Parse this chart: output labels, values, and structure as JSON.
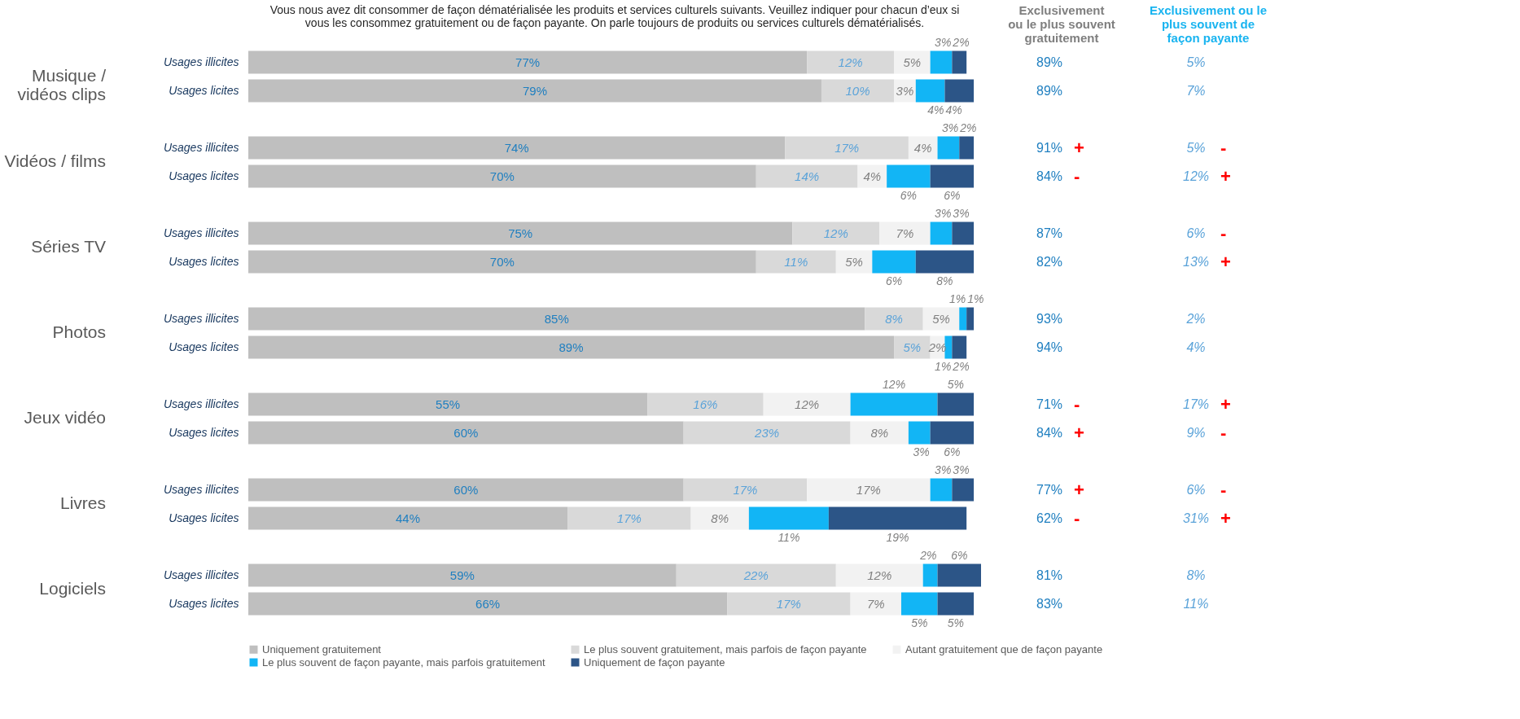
{
  "chart_data": [
    {
      "type": "bar",
      "orientation": "horizontal",
      "stacked": true,
      "title": "Vous nous avez dit consommer de façon dématérialisée les produits et services culturels suivants. Veuillez indiquer pour chacun d’eux si\nvous les consommez gratuitement ou de façon payante. On parle toujours de produits ou services culturels dématérialisés.",
      "categories": [
        "Usages illicites",
        "Usages licites",
        "Usages illicites",
        "Usages licites",
        "Usages illicites",
        "Usages licites",
        "Usages illicites",
        "Usages licites",
        "Usages illicites",
        "Usages licites",
        "Usages illicites",
        "Usages licites",
        "Usages illicites",
        "Usages licites"
      ],
      "annotations": [
        "Musique /\nvidéos clips",
        "Vidéos / films",
        "Séries TV",
        "Photos",
        "Jeux vidéo",
        "Livres",
        "Logiciels"
      ],
      "series": [
        {
          "name": "Uniquement gratuitement",
          "color": "#bfbfbf",
          "values": [
            77,
            79,
            74,
            70,
            75,
            70,
            85,
            89,
            55,
            60,
            60,
            44,
            59,
            66
          ],
          "value_labels": [
            "77%",
            "79%",
            "74%",
            "70%",
            "75%",
            "70%",
            "85%",
            "89%",
            "55%",
            "60%",
            "60%",
            "44%",
            "59%",
            "66%"
          ]
        },
        {
          "name": "Le plus souvent gratuitement, mais parfois de façon payante",
          "color": "#d9d9d9",
          "values": [
            12,
            10,
            17,
            14,
            12,
            11,
            8,
            5,
            16,
            23,
            17,
            17,
            22,
            17
          ],
          "value_labels": [
            "12%",
            "10%",
            "17%",
            "14%",
            "12%",
            "11%",
            "8%",
            "5%",
            "16%",
            "23%",
            "17%",
            "17%",
            "22%",
            "17%"
          ]
        },
        {
          "name": "Autant gratuitement que de façon payante",
          "color": "#f2f2f2",
          "values": [
            5,
            3,
            4,
            4,
            7,
            5,
            5,
            2,
            12,
            8,
            17,
            8,
            12,
            7
          ],
          "value_labels": [
            "5%",
            "3%",
            "4%",
            "4%",
            "7%",
            "5%",
            "5%",
            "2%",
            "12%",
            "8%",
            "17%",
            "8%",
            "12%",
            "7%"
          ]
        },
        {
          "name": "Le plus souvent de façon payante, mais parfois gratuitement",
          "color": "#12b5f5",
          "values": [
            3,
            4,
            3,
            6,
            3,
            6,
            1,
            1,
            12,
            3,
            3,
            11,
            2,
            5
          ],
          "value_labels": [
            "3%",
            "4%",
            "3%",
            "6%",
            "3%",
            "6%",
            "1%",
            "1%",
            "12%",
            "3%",
            "3%",
            "11%",
            "2%",
            "5%"
          ]
        },
        {
          "name": "Uniquement de façon payante",
          "color": "#2c5587",
          "values": [
            2,
            4,
            2,
            6,
            3,
            8,
            1,
            2,
            5,
            6,
            3,
            19,
            6,
            5
          ],
          "value_labels": [
            "2%",
            "4%",
            "2%",
            "6%",
            "3%",
            "8%",
            "1%",
            "2%",
            "5%",
            "6%",
            "3%",
            "19%",
            "6%",
            "5%"
          ]
        }
      ],
      "legend": "bottom",
      "grid": false,
      "tick_labels": "y"
    },
    {
      "type": "other",
      "title": "Exclusivement\nou le plus souvent\ngratuitement",
      "annotations": [
        "89%",
        "89%",
        "91% +",
        "84% -",
        "87%",
        "82%",
        "93%",
        "94%",
        "71% -",
        "84% +",
        "77% +",
        "62% -",
        "81%",
        "83%"
      ]
    },
    {
      "type": "other",
      "title": "Exclusivement ou le\nplus souvent de\nfaçon payante",
      "annotations": [
        "5%",
        "7%",
        "5% -",
        "12% +",
        "6% -",
        "13% +",
        "2%",
        "4%",
        "17% +",
        "9% -",
        "6% -",
        "31% +",
        "8%",
        "11%"
      ]
    }
  ]
}
